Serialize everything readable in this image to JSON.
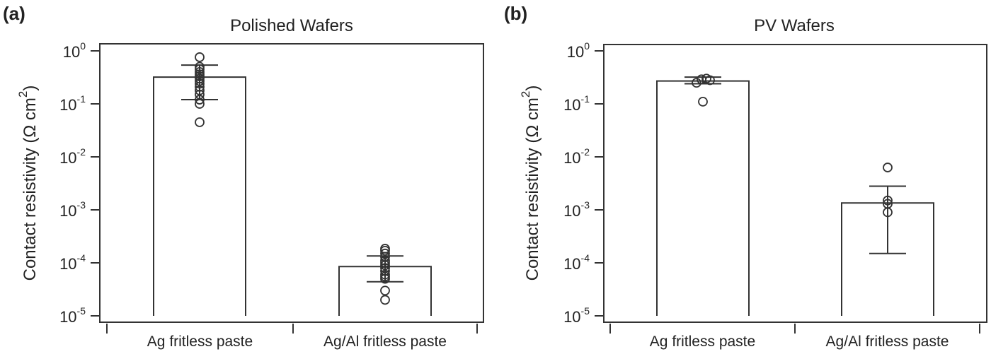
{
  "figure": {
    "panels": [
      {
        "label": "(a)",
        "title": "Polished Wafers"
      },
      {
        "label": "(b)",
        "title": "PV Wafers"
      }
    ],
    "ylabel_text": "Contact resistivity (Ω cm",
    "ylabel_sup": "2",
    "ylabel_close": ")",
    "line_color": "#333333",
    "background": "#ffffff"
  },
  "chart_data": [
    {
      "type": "bar",
      "title": "Polished Wafers",
      "panel_label": "(a)",
      "xlabel": "",
      "ylabel": "Contact resistivity (Ω cm²)",
      "yscale": "log",
      "ylim": [
        1e-05,
        1
      ],
      "yticks": [
        1,
        0.1,
        0.01,
        0.001,
        0.0001,
        1e-05
      ],
      "ytick_labels": [
        "10^0",
        "10^-1",
        "10^-2",
        "10^-3",
        "10^-4",
        "10^-5"
      ],
      "grid": false,
      "categories": [
        "Ag fritless paste",
        "Ag/Al fritless paste"
      ],
      "values": [
        0.32,
        8.5e-05
      ],
      "error_upper": [
        0.54,
        0.000135
      ],
      "error_lower": [
        0.12,
        4.4e-05
      ],
      "points": [
        [
          0.76,
          0.5,
          0.45,
          0.4,
          0.36,
          0.33,
          0.3,
          0.27,
          0.24,
          0.21,
          0.18,
          0.15,
          0.12,
          0.1,
          0.045
        ],
        [
          0.000185,
          0.00017,
          0.00015,
          0.00013,
          0.00011,
          0.0001,
          9e-05,
          8e-05,
          7e-05,
          6e-05,
          5.5e-05,
          5e-05,
          3e-05,
          2e-05
        ]
      ]
    },
    {
      "type": "bar",
      "title": "PV Wafers",
      "panel_label": "(b)",
      "xlabel": "",
      "ylabel": "Contact resistivity (Ω cm²)",
      "yscale": "log",
      "ylim": [
        1e-05,
        1
      ],
      "yticks": [
        1,
        0.1,
        0.01,
        0.001,
        0.0001,
        1e-05
      ],
      "ytick_labels": [
        "10^0",
        "10^-1",
        "10^-2",
        "10^-3",
        "10^-4",
        "10^-5"
      ],
      "grid": false,
      "categories": [
        "Ag fritless paste",
        "Ag/Al fritless paste"
      ],
      "values": [
        0.27,
        0.00135
      ],
      "error_upper": [
        0.32,
        0.0028
      ],
      "error_lower": [
        0.24,
        0.00015
      ],
      "points": [
        [
          0.25,
          0.29,
          0.3,
          0.28,
          0.11
        ],
        [
          0.0063,
          0.0015,
          0.0013,
          0.0009
        ]
      ]
    }
  ]
}
